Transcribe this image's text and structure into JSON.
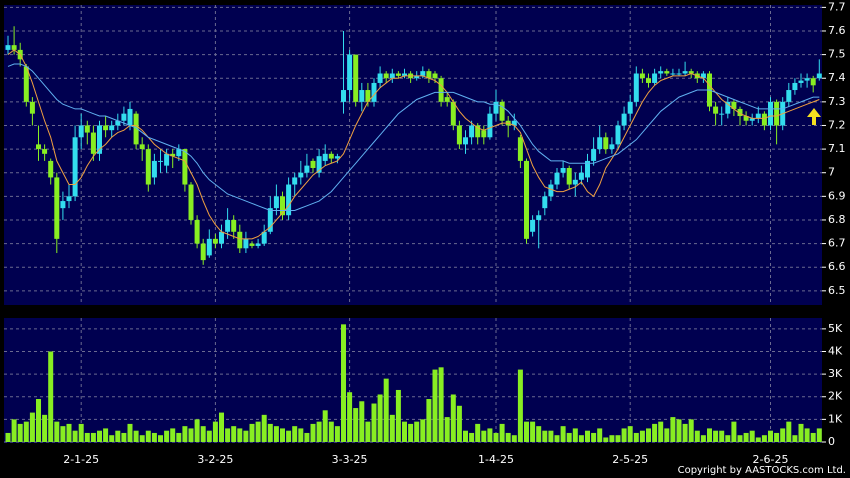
{
  "chart_data": [
    {
      "type": "candlestick",
      "ylim": [
        6.44,
        7.71
      ],
      "yticks": [
        6.5,
        6.6,
        6.7,
        6.8,
        6.9,
        7,
        7.1,
        7.2,
        7.3,
        7.4,
        7.5,
        7.6,
        7.7
      ],
      "xticks": [
        {
          "value": 12,
          "label": "2-1-25"
        },
        {
          "value": 34,
          "label": "3-2-25"
        },
        {
          "value": 56,
          "label": "3-3-25"
        },
        {
          "value": 80,
          "label": "1-4-25"
        },
        {
          "value": 102,
          "label": "2-5-25"
        },
        {
          "value": 125,
          "label": "2-6-25"
        }
      ],
      "grid": true,
      "up_color": "#33ddee",
      "down_color": "#88ee22",
      "ohlc": [
        [
          7.52,
          7.58,
          7.5,
          7.54
        ],
        [
          7.54,
          7.62,
          7.5,
          7.52
        ],
        [
          7.52,
          7.55,
          7.45,
          7.48
        ],
        [
          7.45,
          7.46,
          7.28,
          7.3
        ],
        [
          7.3,
          7.32,
          7.2,
          7.25
        ],
        [
          7.12,
          7.2,
          7.05,
          7.1
        ],
        [
          7.1,
          7.12,
          7.05,
          7.08
        ],
        [
          7.05,
          7.06,
          6.95,
          6.98
        ],
        [
          6.98,
          7.0,
          6.66,
          6.72
        ],
        [
          6.85,
          6.92,
          6.8,
          6.88
        ],
        [
          6.88,
          6.95,
          6.85,
          6.9
        ],
        [
          6.9,
          7.2,
          6.88,
          7.15
        ],
        [
          7.15,
          7.25,
          7.1,
          7.2
        ],
        [
          7.2,
          7.22,
          7.12,
          7.17
        ],
        [
          7.17,
          7.2,
          7.05,
          7.08
        ],
        [
          7.08,
          7.22,
          7.05,
          7.2
        ],
        [
          7.2,
          7.24,
          7.15,
          7.18
        ],
        [
          7.18,
          7.22,
          7.15,
          7.2
        ],
        [
          7.2,
          7.25,
          7.18,
          7.22
        ],
        [
          7.22,
          7.28,
          7.2,
          7.25
        ],
        [
          7.2,
          7.3,
          7.18,
          7.27
        ],
        [
          7.25,
          7.26,
          7.1,
          7.12
        ],
        [
          7.12,
          7.15,
          7.05,
          7.1
        ],
        [
          7.1,
          7.12,
          6.92,
          6.95
        ],
        [
          6.98,
          7.08,
          6.95,
          7.05
        ],
        [
          7.05,
          7.1,
          7.0,
          7.05
        ],
        [
          7.03,
          7.1,
          7.0,
          7.08
        ],
        [
          7.08,
          7.1,
          7.02,
          7.07
        ],
        [
          7.07,
          7.12,
          7.05,
          7.1
        ],
        [
          7.1,
          7.1,
          6.92,
          6.95
        ],
        [
          6.95,
          6.96,
          6.78,
          6.8
        ],
        [
          6.8,
          6.82,
          6.68,
          6.7
        ],
        [
          6.7,
          6.72,
          6.61,
          6.63
        ],
        [
          6.65,
          6.76,
          6.64,
          6.72
        ],
        [
          6.72,
          6.74,
          6.68,
          6.7
        ],
        [
          6.7,
          6.78,
          6.68,
          6.75
        ],
        [
          6.75,
          6.85,
          6.72,
          6.8
        ],
        [
          6.8,
          6.82,
          6.72,
          6.75
        ],
        [
          6.75,
          6.78,
          6.66,
          6.68
        ],
        [
          6.68,
          6.75,
          6.66,
          6.72
        ],
        [
          6.7,
          6.71,
          6.68,
          6.69
        ],
        [
          6.69,
          6.72,
          6.68,
          6.7
        ],
        [
          6.7,
          6.78,
          6.69,
          6.75
        ],
        [
          6.75,
          6.9,
          6.74,
          6.85
        ],
        [
          6.85,
          6.95,
          6.82,
          6.9
        ],
        [
          6.9,
          6.92,
          6.8,
          6.82
        ],
        [
          6.82,
          6.98,
          6.8,
          6.95
        ],
        [
          6.95,
          7.0,
          6.9,
          6.98
        ],
        [
          6.98,
          7.05,
          6.95,
          7.0
        ],
        [
          7.0,
          7.08,
          6.98,
          7.03
        ],
        [
          7.05,
          7.06,
          7.0,
          7.02
        ],
        [
          7.0,
          7.1,
          6.98,
          7.07
        ],
        [
          7.05,
          7.12,
          7.03,
          7.08
        ],
        [
          7.08,
          7.09,
          7.04,
          7.06
        ],
        [
          7.06,
          7.08,
          7.04,
          7.07
        ],
        [
          7.3,
          7.6,
          7.25,
          7.35
        ],
        [
          7.35,
          7.52,
          7.3,
          7.5
        ],
        [
          7.5,
          7.5,
          7.28,
          7.3
        ],
        [
          7.3,
          7.38,
          7.26,
          7.35
        ],
        [
          7.35,
          7.38,
          7.28,
          7.3
        ],
        [
          7.3,
          7.4,
          7.28,
          7.38
        ],
        [
          7.38,
          7.45,
          7.36,
          7.42
        ],
        [
          7.42,
          7.43,
          7.38,
          7.4
        ],
        [
          7.4,
          7.44,
          7.38,
          7.42
        ],
        [
          7.42,
          7.43,
          7.4,
          7.41
        ],
        [
          7.41,
          7.44,
          7.4,
          7.42
        ],
        [
          7.42,
          7.43,
          7.38,
          7.4
        ],
        [
          7.4,
          7.43,
          7.39,
          7.41
        ],
        [
          7.41,
          7.45,
          7.4,
          7.43
        ],
        [
          7.43,
          7.44,
          7.38,
          7.4
        ],
        [
          7.42,
          7.43,
          7.38,
          7.4
        ],
        [
          7.4,
          7.41,
          7.28,
          7.3
        ],
        [
          7.32,
          7.34,
          7.28,
          7.3
        ],
        [
          7.3,
          7.31,
          7.18,
          7.2
        ],
        [
          7.2,
          7.22,
          7.1,
          7.12
        ],
        [
          7.12,
          7.18,
          7.08,
          7.15
        ],
        [
          7.15,
          7.22,
          7.12,
          7.2
        ],
        [
          7.2,
          7.21,
          7.12,
          7.15
        ],
        [
          7.18,
          7.2,
          7.12,
          7.15
        ],
        [
          7.15,
          7.28,
          7.14,
          7.25
        ],
        [
          7.25,
          7.35,
          7.22,
          7.3
        ],
        [
          7.3,
          7.31,
          7.2,
          7.22
        ],
        [
          7.22,
          7.24,
          7.15,
          7.2
        ],
        [
          7.2,
          7.25,
          7.18,
          7.22
        ],
        [
          7.15,
          7.16,
          7.02,
          7.05
        ],
        [
          7.05,
          7.06,
          6.7,
          6.72
        ],
        [
          6.75,
          6.82,
          6.73,
          6.8
        ],
        [
          6.8,
          6.84,
          6.68,
          6.82
        ],
        [
          6.85,
          6.92,
          6.82,
          6.9
        ],
        [
          6.9,
          6.97,
          6.88,
          6.95
        ],
        [
          6.95,
          7.02,
          6.93,
          7.0
        ],
        [
          7.0,
          7.05,
          6.98,
          7.02
        ],
        [
          7.02,
          7.03,
          6.93,
          6.95
        ],
        [
          6.95,
          7.0,
          6.9,
          6.97
        ],
        [
          6.97,
          7.03,
          6.95,
          7.0
        ],
        [
          6.98,
          7.08,
          6.96,
          7.05
        ],
        [
          7.05,
          7.15,
          7.03,
          7.1
        ],
        [
          7.1,
          7.2,
          7.08,
          7.15
        ],
        [
          7.15,
          7.17,
          7.08,
          7.1
        ],
        [
          7.1,
          7.15,
          7.08,
          7.12
        ],
        [
          7.12,
          7.22,
          7.1,
          7.2
        ],
        [
          7.2,
          7.28,
          7.18,
          7.25
        ],
        [
          7.25,
          7.33,
          7.22,
          7.3
        ],
        [
          7.3,
          7.45,
          7.28,
          7.42
        ],
        [
          7.42,
          7.44,
          7.38,
          7.4
        ],
        [
          7.4,
          7.42,
          7.36,
          7.38
        ],
        [
          7.38,
          7.44,
          7.37,
          7.42
        ],
        [
          7.42,
          7.45,
          7.4,
          7.43
        ],
        [
          7.43,
          7.44,
          7.41,
          7.42
        ],
        [
          7.42,
          7.44,
          7.41,
          7.42
        ],
        [
          7.42,
          7.44,
          7.41,
          7.42
        ],
        [
          7.42,
          7.47,
          7.41,
          7.43
        ],
        [
          7.43,
          7.44,
          7.4,
          7.42
        ],
        [
          7.42,
          7.43,
          7.38,
          7.4
        ],
        [
          7.4,
          7.43,
          7.38,
          7.42
        ],
        [
          7.42,
          7.43,
          7.26,
          7.28
        ],
        [
          7.28,
          7.3,
          7.2,
          7.25
        ],
        [
          7.25,
          7.28,
          7.2,
          7.25
        ],
        [
          7.25,
          7.32,
          7.23,
          7.3
        ],
        [
          7.3,
          7.31,
          7.24,
          7.27
        ],
        [
          7.27,
          7.28,
          7.2,
          7.24
        ],
        [
          7.24,
          7.26,
          7.2,
          7.22
        ],
        [
          7.22,
          7.25,
          7.2,
          7.23
        ],
        [
          7.23,
          7.28,
          7.21,
          7.25
        ],
        [
          7.25,
          7.26,
          7.18,
          7.2
        ],
        [
          7.2,
          7.32,
          7.18,
          7.3
        ],
        [
          7.3,
          7.31,
          7.12,
          7.2
        ],
        [
          7.2,
          7.32,
          7.18,
          7.3
        ],
        [
          7.3,
          7.38,
          7.28,
          7.35
        ],
        [
          7.35,
          7.4,
          7.33,
          7.38
        ],
        [
          7.38,
          7.42,
          7.36,
          7.39
        ],
        [
          7.39,
          7.42,
          7.36,
          7.4
        ],
        [
          7.4,
          7.41,
          7.34,
          7.37
        ],
        [
          7.4,
          7.48,
          7.39,
          7.42
        ]
      ],
      "lines": [
        {
          "color": "#f0a040",
          "values": [
            7.5,
            7.52,
            7.5,
            7.45,
            7.38,
            7.3,
            7.22,
            7.15,
            7.05,
            7.0,
            6.95,
            6.95,
            6.98,
            7.03,
            7.07,
            7.1,
            7.12,
            7.15,
            7.17,
            7.18,
            7.2,
            7.2,
            7.18,
            7.15,
            7.12,
            7.1,
            7.08,
            7.07,
            7.06,
            7.05,
            7.0,
            6.95,
            6.88,
            6.82,
            6.78,
            6.75,
            6.74,
            6.73,
            6.72,
            6.72,
            6.72,
            6.73,
            6.75,
            6.77,
            6.8,
            6.83,
            6.86,
            6.9,
            6.93,
            6.96,
            6.99,
            7.01,
            7.03,
            7.04,
            7.05,
            7.08,
            7.14,
            7.2,
            7.25,
            7.3,
            7.33,
            7.36,
            7.38,
            7.4,
            7.4,
            7.41,
            7.41,
            7.41,
            7.41,
            7.4,
            7.39,
            7.37,
            7.34,
            7.3,
            7.26,
            7.23,
            7.21,
            7.19,
            7.18,
            7.19,
            7.2,
            7.21,
            7.21,
            7.2,
            7.17,
            7.1,
            7.03,
            6.98,
            6.94,
            6.93,
            6.92,
            6.92,
            6.93,
            6.94,
            6.96,
            6.92,
            6.9,
            6.95,
            7.02,
            7.06,
            7.1,
            7.15,
            7.2,
            7.25,
            7.3,
            7.34,
            7.37,
            7.39,
            7.4,
            7.41,
            7.41,
            7.41,
            7.42,
            7.41,
            7.4,
            7.37,
            7.34,
            7.31,
            7.29,
            7.27,
            7.25,
            7.24,
            7.23,
            7.23,
            7.23,
            7.24,
            7.24,
            7.25,
            7.26,
            7.27,
            7.28,
            7.29,
            7.3,
            7.31
          ]
        },
        {
          "color": "#60b0f0",
          "values": [
            7.45,
            7.46,
            7.46,
            7.45,
            7.43,
            7.4,
            7.37,
            7.34,
            7.31,
            7.29,
            7.28,
            7.27,
            7.27,
            7.26,
            7.25,
            7.24,
            7.24,
            7.23,
            7.22,
            7.21,
            7.2,
            7.19,
            7.17,
            7.15,
            7.14,
            7.13,
            7.12,
            7.11,
            7.1,
            7.09,
            7.07,
            7.04,
            7.0,
            6.97,
            6.95,
            6.93,
            6.91,
            6.9,
            6.89,
            6.88,
            6.87,
            6.86,
            6.85,
            6.84,
            6.84,
            6.84,
            6.84,
            6.84,
            6.85,
            6.86,
            6.87,
            6.88,
            6.9,
            6.92,
            6.95,
            6.98,
            7.01,
            7.04,
            7.07,
            7.1,
            7.13,
            7.16,
            7.19,
            7.22,
            7.25,
            7.27,
            7.29,
            7.31,
            7.32,
            7.33,
            7.34,
            7.34,
            7.34,
            7.34,
            7.33,
            7.32,
            7.31,
            7.3,
            7.3,
            7.29,
            7.29,
            7.28,
            7.26,
            7.23,
            7.2,
            7.16,
            7.12,
            7.09,
            7.07,
            7.05,
            7.05,
            7.05,
            7.04,
            7.04,
            7.04,
            7.04,
            7.04,
            7.05,
            7.06,
            7.07,
            7.08,
            7.1,
            7.12,
            7.14,
            7.17,
            7.2,
            7.23,
            7.26,
            7.28,
            7.3,
            7.32,
            7.33,
            7.34,
            7.35,
            7.35,
            7.35,
            7.34,
            7.33,
            7.32,
            7.31,
            7.3,
            7.29,
            7.28,
            7.27,
            7.27,
            7.27,
            7.27,
            7.27,
            7.28,
            7.29,
            7.3,
            7.31,
            7.32,
            7.32
          ]
        }
      ]
    },
    {
      "type": "bar",
      "color": "#88ee22",
      "ylim": [
        0,
        5480
      ],
      "yticks": [
        0,
        {
          "value": 1000,
          "label": "1K"
        },
        {
          "value": 2000,
          "label": "2K"
        },
        {
          "value": 3000,
          "label": "3K"
        },
        {
          "value": 4000,
          "label": "4K"
        },
        {
          "value": 5000,
          "label": "5K"
        }
      ],
      "grid": true,
      "values": [
        400,
        1000,
        800,
        900,
        1300,
        1900,
        1200,
        4000,
        900,
        700,
        800,
        500,
        800,
        400,
        400,
        500,
        600,
        300,
        500,
        400,
        800,
        500,
        300,
        500,
        400,
        300,
        500,
        600,
        400,
        700,
        600,
        1000,
        700,
        500,
        900,
        1300,
        600,
        700,
        600,
        500,
        800,
        900,
        1200,
        800,
        700,
        600,
        500,
        700,
        600,
        400,
        800,
        900,
        1400,
        900,
        700,
        5200,
        2200,
        1500,
        1800,
        900,
        1700,
        2100,
        2800,
        1200,
        2300,
        900,
        800,
        900,
        1000,
        1900,
        3200,
        3300,
        1100,
        2100,
        1600,
        500,
        400,
        800,
        500,
        600,
        400,
        800,
        400,
        300,
        3200,
        900,
        900,
        700,
        500,
        500,
        300,
        700,
        400,
        600,
        300,
        500,
        400,
        600,
        200,
        300,
        300,
        600,
        700,
        400,
        500,
        600,
        800,
        900,
        600,
        1100,
        1000,
        800,
        1000,
        500,
        300,
        600,
        500,
        500,
        300,
        900,
        300,
        400,
        500,
        200,
        300,
        500,
        400,
        600,
        900,
        300,
        800,
        600,
        400,
        600
      ]
    }
  ],
  "footer": {
    "copyright": "Copyright by AASTOCKS.com Ltd."
  }
}
